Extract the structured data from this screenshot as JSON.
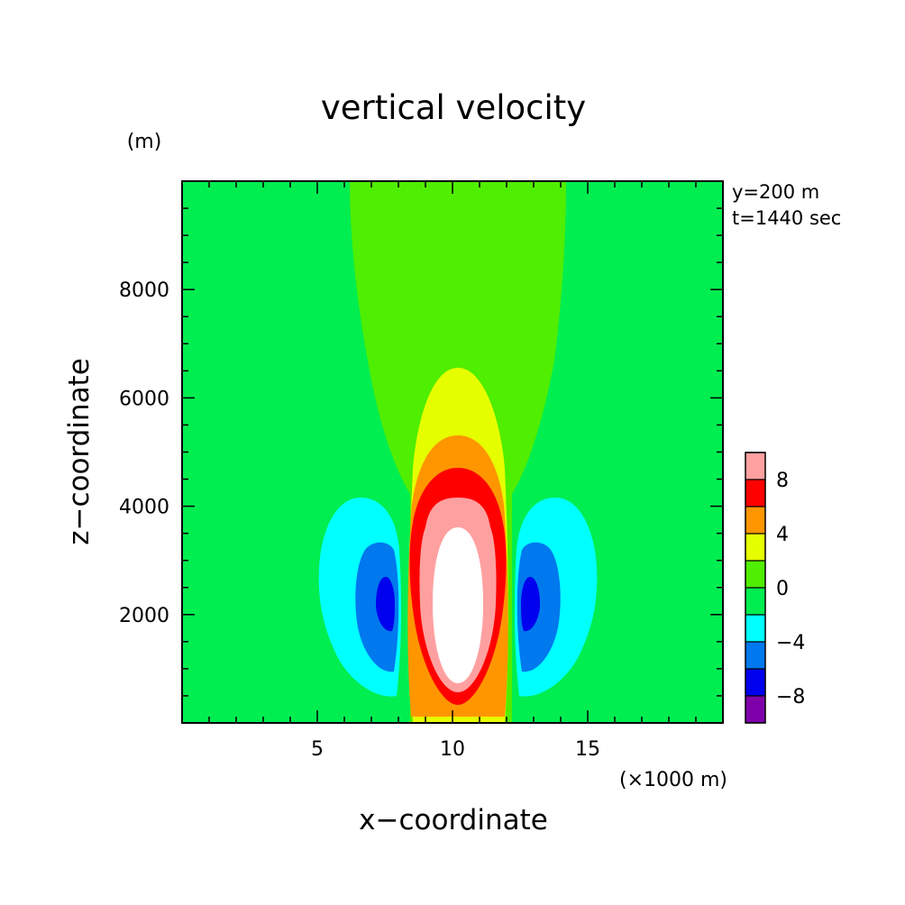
{
  "chart_data": {
    "type": "heatmap",
    "subtype": "filled-contour",
    "title": "vertical velocity",
    "xlabel": "x−coordinate",
    "ylabel": "z−coordinate",
    "x_unit_label": "(×1000 m)",
    "y_unit_label": "(m)",
    "annotations": [
      "y=200 m",
      "t=1440 sec"
    ],
    "xlim": [
      0,
      20
    ],
    "ylim": [
      0,
      10000
    ],
    "x_ticks": [
      5,
      10,
      15
    ],
    "x_tick_labels": [
      "5",
      "10",
      "15"
    ],
    "y_ticks": [
      2000,
      4000,
      6000,
      8000
    ],
    "y_tick_labels": [
      "2000",
      "4000",
      "6000",
      "8000"
    ],
    "colorbar": {
      "levels": [
        -10,
        -8,
        -6,
        -4,
        -2,
        0,
        2,
        4,
        6,
        8,
        10
      ],
      "colors": [
        "#7f00aa",
        "#0000ee",
        "#0078ee",
        "#00ffff",
        "#00ee50",
        "#50ee00",
        "#e6ff00",
        "#ff9600",
        "#ff0000",
        "#ffa0a0"
      ],
      "tick_values": [
        -8,
        -4,
        0,
        4,
        8
      ],
      "tick_labels": [
        "−8",
        "−4",
        "0",
        "4",
        "8"
      ]
    },
    "max_color": "#ffffff",
    "features": [
      {
        "name": "background",
        "color": "#00ee50"
      },
      {
        "name": "weak-updraft-plume",
        "color": "#50ee00",
        "x_range": [
          6.5,
          14.5
        ],
        "z_range": [
          0,
          10000
        ]
      },
      {
        "name": "updraft-2-4",
        "color": "#e6ff00",
        "center": [
          10.1,
          3400
        ],
        "x_halfwidth": 1.7,
        "z_range": [
          0,
          6550
        ]
      },
      {
        "name": "updraft-4-6",
        "color": "#ff9600",
        "center": [
          10.1,
          2900
        ],
        "x_halfwidth": 1.6,
        "z_range": [
          0,
          5300
        ]
      },
      {
        "name": "updraft-6-8",
        "color": "#ff0000",
        "center": [
          10.1,
          2500
        ],
        "x_halfwidth": 1.5,
        "z_range": [
          200,
          4700
        ]
      },
      {
        "name": "updraft-8-10",
        "color": "#ffa0a0",
        "center": [
          10.1,
          2500
        ],
        "x_halfwidth": 1.1,
        "z_range": [
          500,
          4200
        ]
      },
      {
        "name": "updraft-max",
        "color": "#ffffff",
        "center": [
          10.1,
          2300
        ],
        "x_halfwidth": 0.75,
        "z_range": [
          900,
          3650
        ]
      },
      {
        "name": "downdraft-left-0-2",
        "color": "#00ffff",
        "center": [
          7.2,
          2400
        ],
        "z_range": [
          600,
          4200
        ]
      },
      {
        "name": "downdraft-left-2-4",
        "color": "#0078ee",
        "center": [
          7.7,
          2200
        ],
        "z_range": [
          1000,
          3400
        ]
      },
      {
        "name": "downdraft-left-4-6",
        "color": "#0000ee",
        "center": [
          7.9,
          2200
        ],
        "z_range": [
          1700,
          2700
        ]
      },
      {
        "name": "downdraft-right-0-2",
        "color": "#00ffff",
        "center": [
          12.9,
          2400
        ],
        "z_range": [
          600,
          4200
        ]
      },
      {
        "name": "downdraft-right-2-4",
        "color": "#0078ee",
        "center": [
          12.5,
          2200
        ],
        "z_range": [
          1000,
          3400
        ]
      },
      {
        "name": "downdraft-right-4-6",
        "color": "#0000ee",
        "center": [
          12.3,
          2200
        ],
        "z_range": [
          1700,
          2700
        ]
      }
    ]
  }
}
